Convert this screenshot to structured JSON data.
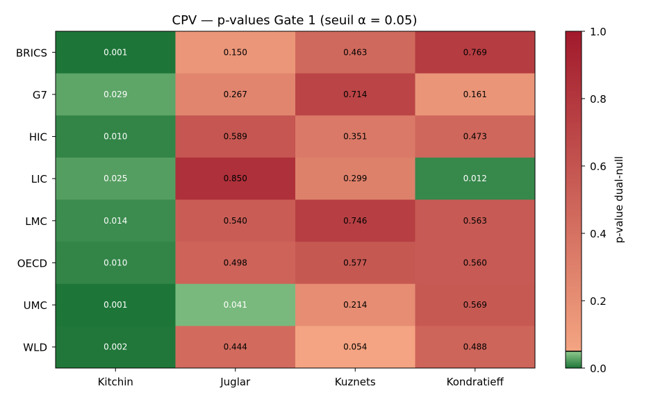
{
  "chart_data": {
    "type": "heatmap",
    "title": "CPV — p-values Gate 1 (seuil α = 0.05)",
    "x_categories": [
      "Kitchin",
      "Juglar",
      "Kuznets",
      "Kondratieff"
    ],
    "y_categories": [
      "BRICS",
      "G7",
      "HIC",
      "LIC",
      "LMC",
      "OECD",
      "UMC",
      "WLD"
    ],
    "values": [
      [
        0.001,
        0.15,
        0.463,
        0.769
      ],
      [
        0.029,
        0.267,
        0.714,
        0.161
      ],
      [
        0.01,
        0.589,
        0.351,
        0.473
      ],
      [
        0.025,
        0.85,
        0.299,
        0.012
      ],
      [
        0.014,
        0.54,
        0.746,
        0.563
      ],
      [
        0.01,
        0.498,
        0.577,
        0.56
      ],
      [
        0.001,
        0.041,
        0.214,
        0.569
      ],
      [
        0.002,
        0.444,
        0.054,
        0.488
      ]
    ],
    "value_labels": [
      [
        "0.001",
        "0.150",
        "0.463",
        "0.769"
      ],
      [
        "0.029",
        "0.267",
        "0.714",
        "0.161"
      ],
      [
        "0.010",
        "0.589",
        "0.351",
        "0.473"
      ],
      [
        "0.025",
        "0.850",
        "0.299",
        "0.012"
      ],
      [
        "0.014",
        "0.540",
        "0.746",
        "0.563"
      ],
      [
        "0.010",
        "0.498",
        "0.577",
        "0.560"
      ],
      [
        "0.001",
        "0.041",
        "0.214",
        "0.569"
      ],
      [
        "0.002",
        "0.444",
        "0.054",
        "0.488"
      ]
    ],
    "threshold": 0.05,
    "colorbar": {
      "label": "p-value dual-null",
      "range": [
        0,
        1
      ],
      "ticks": [
        "0.0",
        "0.2",
        "0.4",
        "0.6",
        "0.8",
        "1.0"
      ],
      "below_threshold_colors": [
        "#1b7436",
        "#8ec88c"
      ],
      "above_threshold_colors": [
        "#f4a582",
        "#a11a2c"
      ]
    },
    "grid": false
  }
}
